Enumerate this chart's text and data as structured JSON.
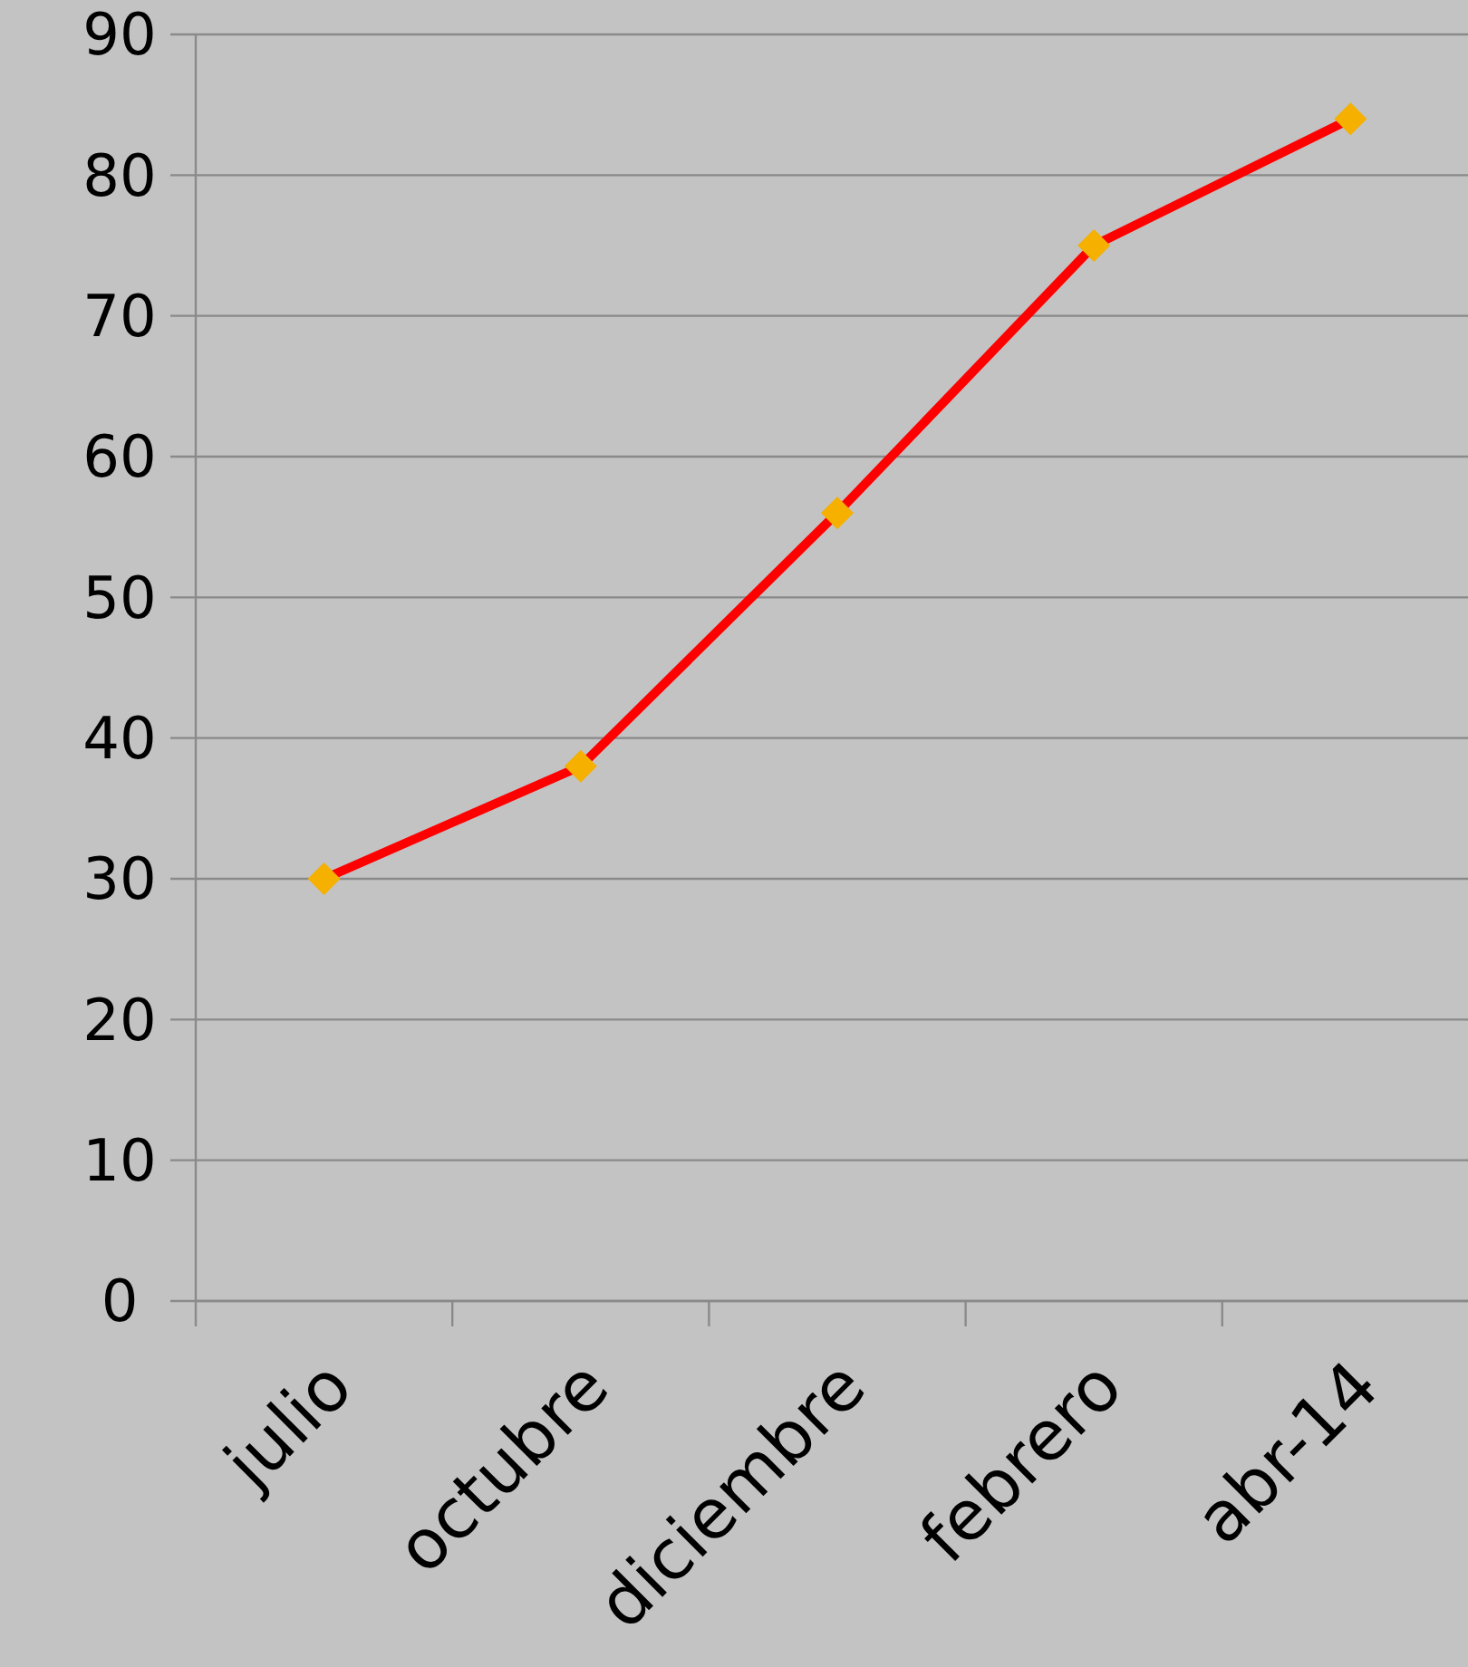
{
  "chart_data": {
    "type": "line",
    "categories": [
      "julio",
      "octubre",
      "diciembre",
      "febrero",
      "abr-14"
    ],
    "series": [
      {
        "color": "#ff0000",
        "values": [
          30,
          38,
          56,
          75,
          84
        ]
      }
    ],
    "marker": "diamond",
    "ylim": [
      0,
      90
    ],
    "yticks": [
      0,
      10,
      20,
      30,
      40,
      50,
      60,
      70,
      80,
      90
    ],
    "grid": "y"
  }
}
